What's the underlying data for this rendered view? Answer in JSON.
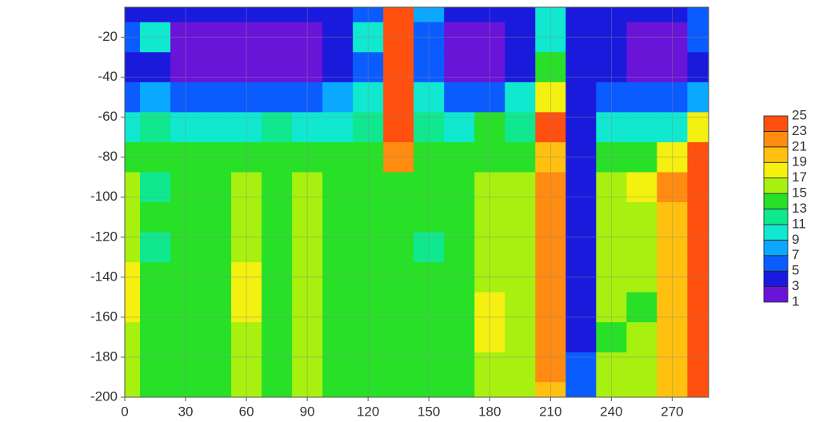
{
  "chart_data": {
    "type": "contour",
    "x": [
      0,
      15,
      30,
      45,
      60,
      75,
      90,
      105,
      120,
      135,
      150,
      165,
      180,
      195,
      210,
      225,
      240,
      255,
      270,
      285
    ],
    "y": [
      -5,
      -20,
      -35,
      -50,
      -65,
      -80,
      -95,
      -110,
      -125,
      -140,
      -155,
      -170,
      -185,
      -200
    ],
    "z": [
      [
        3,
        3,
        3,
        3,
        3,
        3,
        3,
        3,
        5,
        25,
        7,
        3,
        3,
        3,
        9,
        3,
        3,
        3,
        3,
        5
      ],
      [
        5,
        9,
        1,
        1,
        1,
        1,
        1,
        3,
        9,
        25,
        5,
        1,
        1,
        3,
        9,
        3,
        3,
        1,
        1,
        5
      ],
      [
        3,
        3,
        1,
        1,
        1,
        1,
        1,
        3,
        5,
        23,
        5,
        1,
        1,
        3,
        13,
        3,
        3,
        1,
        1,
        3
      ],
      [
        5,
        7,
        5,
        5,
        5,
        5,
        5,
        7,
        9,
        23,
        9,
        5,
        5,
        9,
        17,
        3,
        5,
        5,
        5,
        7
      ],
      [
        9,
        11,
        9,
        9,
        9,
        11,
        9,
        9,
        11,
        23,
        11,
        9,
        13,
        11,
        23,
        3,
        9,
        9,
        9,
        17
      ],
      [
        13,
        13,
        13,
        13,
        13,
        13,
        13,
        13,
        13,
        21,
        13,
        13,
        13,
        13,
        19,
        3,
        13,
        13,
        17,
        23
      ],
      [
        15,
        11,
        13,
        13,
        15,
        13,
        15,
        13,
        13,
        13,
        13,
        13,
        15,
        15,
        21,
        3,
        15,
        17,
        21,
        25
      ],
      [
        15,
        13,
        13,
        13,
        15,
        13,
        15,
        13,
        13,
        13,
        13,
        13,
        15,
        15,
        21,
        3,
        15,
        15,
        19,
        25
      ],
      [
        15,
        11,
        13,
        13,
        15,
        13,
        15,
        13,
        13,
        13,
        11,
        13,
        15,
        15,
        21,
        3,
        15,
        15,
        19,
        25
      ],
      [
        17,
        13,
        13,
        13,
        17,
        13,
        15,
        13,
        13,
        13,
        13,
        13,
        15,
        15,
        21,
        3,
        15,
        15,
        19,
        25
      ],
      [
        17,
        13,
        13,
        13,
        17,
        13,
        15,
        13,
        13,
        13,
        13,
        13,
        17,
        15,
        21,
        3,
        15,
        13,
        19,
        25
      ],
      [
        15,
        13,
        13,
        13,
        15,
        13,
        15,
        13,
        13,
        13,
        13,
        13,
        17,
        15,
        21,
        3,
        13,
        15,
        19,
        25
      ],
      [
        15,
        13,
        13,
        13,
        15,
        13,
        15,
        13,
        13,
        13,
        13,
        13,
        15,
        15,
        21,
        5,
        15,
        15,
        19,
        25
      ],
      [
        15,
        13,
        13,
        13,
        15,
        13,
        15,
        13,
        13,
        13,
        13,
        13,
        15,
        15,
        19,
        5,
        15,
        15,
        19,
        25
      ]
    ],
    "levels": [
      1,
      3,
      5,
      7,
      9,
      11,
      13,
      15,
      17,
      19,
      21,
      23,
      25
    ],
    "colors": [
      "#6a14d8",
      "#1a1adc",
      "#0a5cff",
      "#0aa8ff",
      "#10e8d0",
      "#10e890",
      "#28e028",
      "#a8f010",
      "#f4f010",
      "#ffc010",
      "#ff8c10",
      "#ff5010",
      "#e81a10"
    ],
    "xlim": [
      0,
      288
    ],
    "ylim": [
      -200,
      -5
    ],
    "xticks": [
      0,
      30,
      60,
      90,
      120,
      150,
      180,
      210,
      240,
      270
    ],
    "yticks": [
      -200,
      -180,
      -160,
      -140,
      -120,
      -100,
      -80,
      -60,
      -40,
      -20
    ],
    "grid": true
  }
}
